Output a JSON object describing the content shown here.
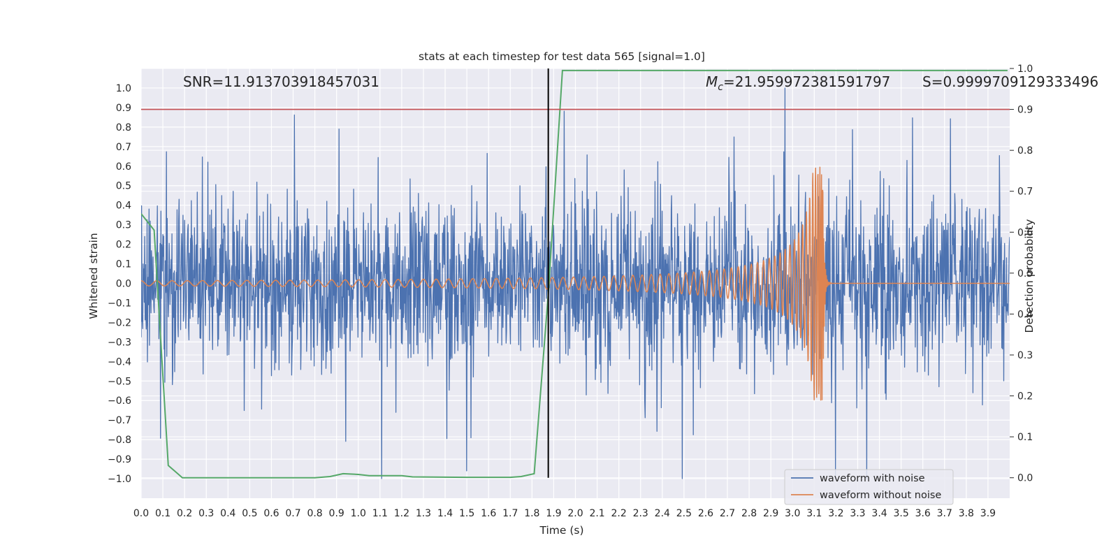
{
  "chart_data": {
    "type": "line",
    "title": "stats at each timestep for test data 565 [signal=1.0]",
    "xlabel": "Time (s)",
    "ylabel": "Whitened strain",
    "y2label": "Detection probability",
    "xlim": [
      0.0,
      4.0
    ],
    "ylim": [
      -1.1,
      1.1
    ],
    "y2lim": [
      -0.05,
      1.0
    ],
    "x_ticks": [
      "0.0",
      "0.1",
      "0.2",
      "0.3",
      "0.4",
      "0.5",
      "0.6",
      "0.7",
      "0.8",
      "0.9",
      "1.0",
      "1.1",
      "1.2",
      "1.3",
      "1.4",
      "1.5",
      "1.6",
      "1.7",
      "1.8",
      "1.9",
      "2.0",
      "2.1",
      "2.2",
      "2.3",
      "2.4",
      "2.5",
      "2.6",
      "2.7",
      "2.8",
      "2.9",
      "3.0",
      "3.1",
      "3.2",
      "3.3",
      "3.4",
      "3.5",
      "3.6",
      "3.7",
      "3.8",
      "3.9"
    ],
    "y_ticks": [
      "1.0",
      "0.9",
      "0.8",
      "0.7",
      "0.6",
      "0.5",
      "0.4",
      "0.3",
      "0.2",
      "0.1",
      "0.0",
      "−0.1",
      "−0.2",
      "−0.3",
      "−0.4",
      "−0.5",
      "−0.6",
      "−0.7",
      "−0.8",
      "−0.9",
      "−1.0"
    ],
    "y_tick_values": [
      1.0,
      0.9,
      0.8,
      0.7,
      0.6,
      0.5,
      0.4,
      0.3,
      0.2,
      0.1,
      0.0,
      -0.1,
      -0.2,
      -0.3,
      -0.4,
      -0.5,
      -0.6,
      -0.7,
      -0.8,
      -0.9,
      -1.0
    ],
    "y2_ticks": [
      "1.0",
      "0.9",
      "0.8",
      "0.7",
      "0.6",
      "0.5",
      "0.4",
      "0.3",
      "0.2",
      "0.1",
      "0.0"
    ],
    "y2_tick_values": [
      1.0,
      0.9,
      0.8,
      0.7,
      0.6,
      0.5,
      0.4,
      0.3,
      0.2,
      0.1,
      0.0
    ],
    "annotations": {
      "snr": "SNR=11.913703918457031",
      "mc_symbol": "M",
      "mc_sub": "c",
      "mc_value": "=21.959972381591797",
      "s": "S=0.9999709129333496"
    },
    "threshold": {
      "value_prob": 0.9,
      "color": "#c44e52"
    },
    "vline": {
      "x": 1.875,
      "color": "#000000"
    },
    "legend": {
      "position": "lower-right",
      "entries": [
        {
          "label": "waveform with noise",
          "color": "#4c72b0"
        },
        {
          "label": "waveform without noise",
          "color": "#dd8452"
        }
      ]
    },
    "series": [
      {
        "name": "waveform with noise",
        "color": "#4c72b0",
        "kind": "noise",
        "amplitude_typical": 0.35,
        "amplitude_max": 1.0,
        "n_points": 2200
      },
      {
        "name": "waveform without noise",
        "color": "#dd8452",
        "kind": "chirp",
        "t_merger": 3.14,
        "amp_start": 0.013,
        "amp_peak": 0.6
      },
      {
        "name": "detection probability",
        "color": "#55a868",
        "axis": "right",
        "x": [
          0.0,
          0.06,
          0.125,
          0.19,
          0.25,
          0.5,
          0.8,
          0.87,
          0.93,
          1.0,
          1.05,
          1.2,
          1.25,
          1.5,
          1.7,
          1.75,
          1.81,
          1.875,
          1.94,
          2.0,
          2.5,
          3.0,
          3.5,
          3.99
        ],
        "values": [
          0.645,
          0.605,
          0.03,
          0.0,
          0.0,
          0.0,
          0.0,
          0.003,
          0.01,
          0.008,
          0.005,
          0.005,
          0.002,
          0.001,
          0.001,
          0.003,
          0.01,
          0.45,
          0.995,
          0.995,
          0.995,
          0.995,
          0.995,
          0.995
        ]
      }
    ]
  }
}
